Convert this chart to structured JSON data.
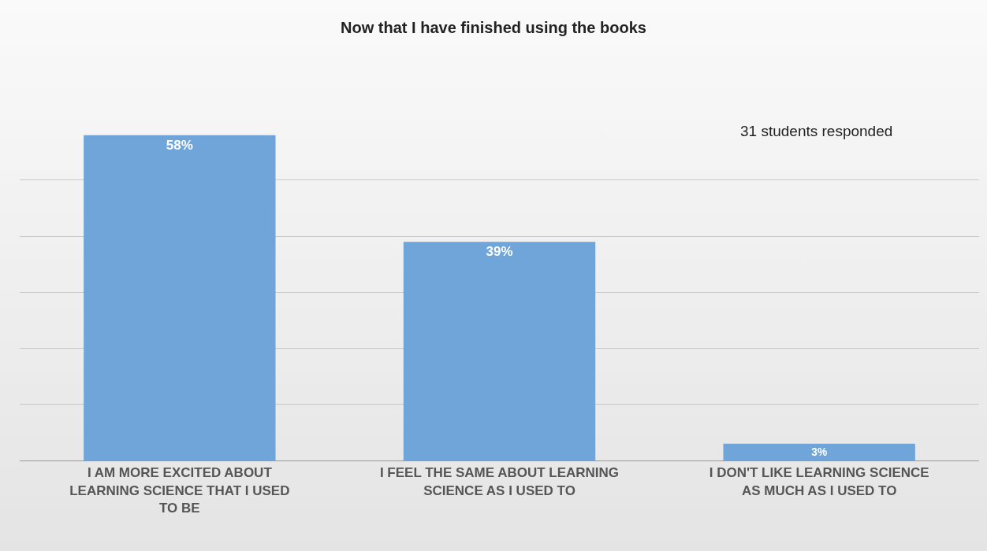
{
  "chart_data": {
    "type": "bar",
    "title": "Now that I have finished using the books",
    "annotations": [
      "31 students responded"
    ],
    "categories": [
      "I AM MORE EXCITED ABOUT LEARNING SCIENCE THAT I USED TO BE",
      "I FEEL THE SAME ABOUT LEARNING SCIENCE AS I USED TO",
      "I DON'T LIKE LEARNING SCIENCE AS MUCH AS I USED TO"
    ],
    "values": [
      58,
      39,
      3
    ],
    "color": "#6fa5d9",
    "value_labels": [
      "58%",
      "39%",
      "3%"
    ],
    "yticks": [
      {
        "value": 0,
        "label": null
      },
      {
        "value": 10,
        "label": null
      },
      {
        "value": 20,
        "label": null
      },
      {
        "value": 30,
        "label": null
      },
      {
        "value": 40,
        "label": null
      },
      {
        "value": 50,
        "label": null
      }
    ],
    "grid": "y",
    "tick_labels": "x"
  }
}
